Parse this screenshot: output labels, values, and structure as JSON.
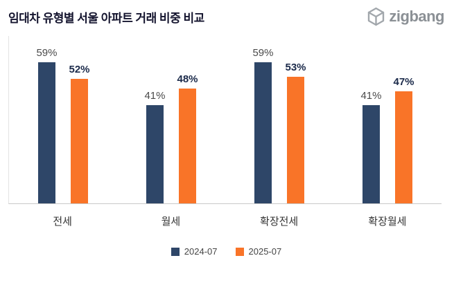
{
  "header": {
    "title": "임대차 유형별 서울 아파트 거래 비중 비교",
    "logo_text": "zigbang"
  },
  "chart_data": {
    "type": "bar",
    "title": "임대차 유형별 서울 아파트 거래 비중 비교",
    "categories": [
      "전세",
      "월세",
      "확장전세",
      "확장월세"
    ],
    "series": [
      {
        "name": "2024-07",
        "color": "#2e4668",
        "values": [
          59,
          41,
          59,
          41
        ]
      },
      {
        "name": "2025-07",
        "color": "#f97428",
        "values": [
          52,
          48,
          53,
          47
        ]
      }
    ],
    "value_suffix": "%",
    "ylim": [
      0,
      70
    ],
    "grid": false,
    "legend_position": "bottom"
  },
  "colors": {
    "series_2024": "#2e4668",
    "series_2025": "#f97428",
    "title_text": "#14142e",
    "logo_gray": "#8b9095",
    "axis_line": "#c9c9c9"
  }
}
